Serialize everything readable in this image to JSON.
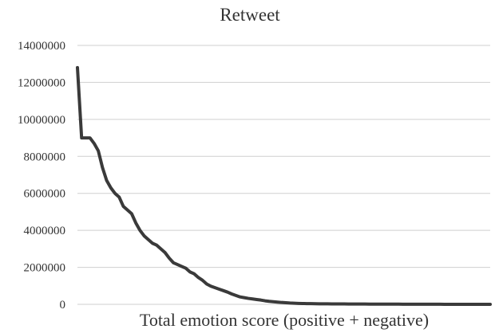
{
  "chart_data": {
    "type": "line",
    "title": "Retweet",
    "xlabel": "Total emotion score (positive + negative)",
    "ylabel": "",
    "ylim": [
      0,
      14000000
    ],
    "ytick_values": [
      0,
      2000000,
      4000000,
      6000000,
      8000000,
      10000000,
      12000000,
      14000000
    ],
    "ytick_labels": [
      "0",
      "2000000",
      "4000000",
      "6000000",
      "8000000",
      "10000000",
      "12000000",
      "14000000"
    ],
    "grid": true,
    "legend": "none",
    "series": [
      {
        "color": "#3a3a3a",
        "values": [
          12800000,
          9000000,
          9000000,
          9000000,
          8700000,
          8300000,
          7400000,
          6700000,
          6300000,
          6000000,
          5800000,
          5300000,
          5100000,
          4900000,
          4400000,
          4000000,
          3700000,
          3500000,
          3300000,
          3200000,
          3000000,
          2800000,
          2500000,
          2250000,
          2150000,
          2050000,
          1950000,
          1750000,
          1650000,
          1450000,
          1300000,
          1100000,
          980000,
          900000,
          820000,
          740000,
          660000,
          560000,
          480000,
          400000,
          360000,
          320000,
          290000,
          260000,
          230000,
          190000,
          160000,
          140000,
          120000,
          100000,
          85000,
          70000,
          60000,
          50000,
          45000,
          40000,
          36000,
          32000,
          29000,
          27000,
          25000,
          23000,
          21000,
          20000,
          19000,
          18000,
          17000,
          16000,
          15000,
          14000,
          13000,
          12000,
          11000,
          10000,
          9500,
          9000,
          8500,
          8000,
          7500,
          7000,
          6500,
          6000,
          5500,
          5000,
          4500,
          4000,
          3500,
          3000,
          2700,
          2400,
          2100,
          1800,
          1500,
          1300,
          1100,
          900,
          700,
          500,
          300,
          100
        ]
      }
    ]
  }
}
